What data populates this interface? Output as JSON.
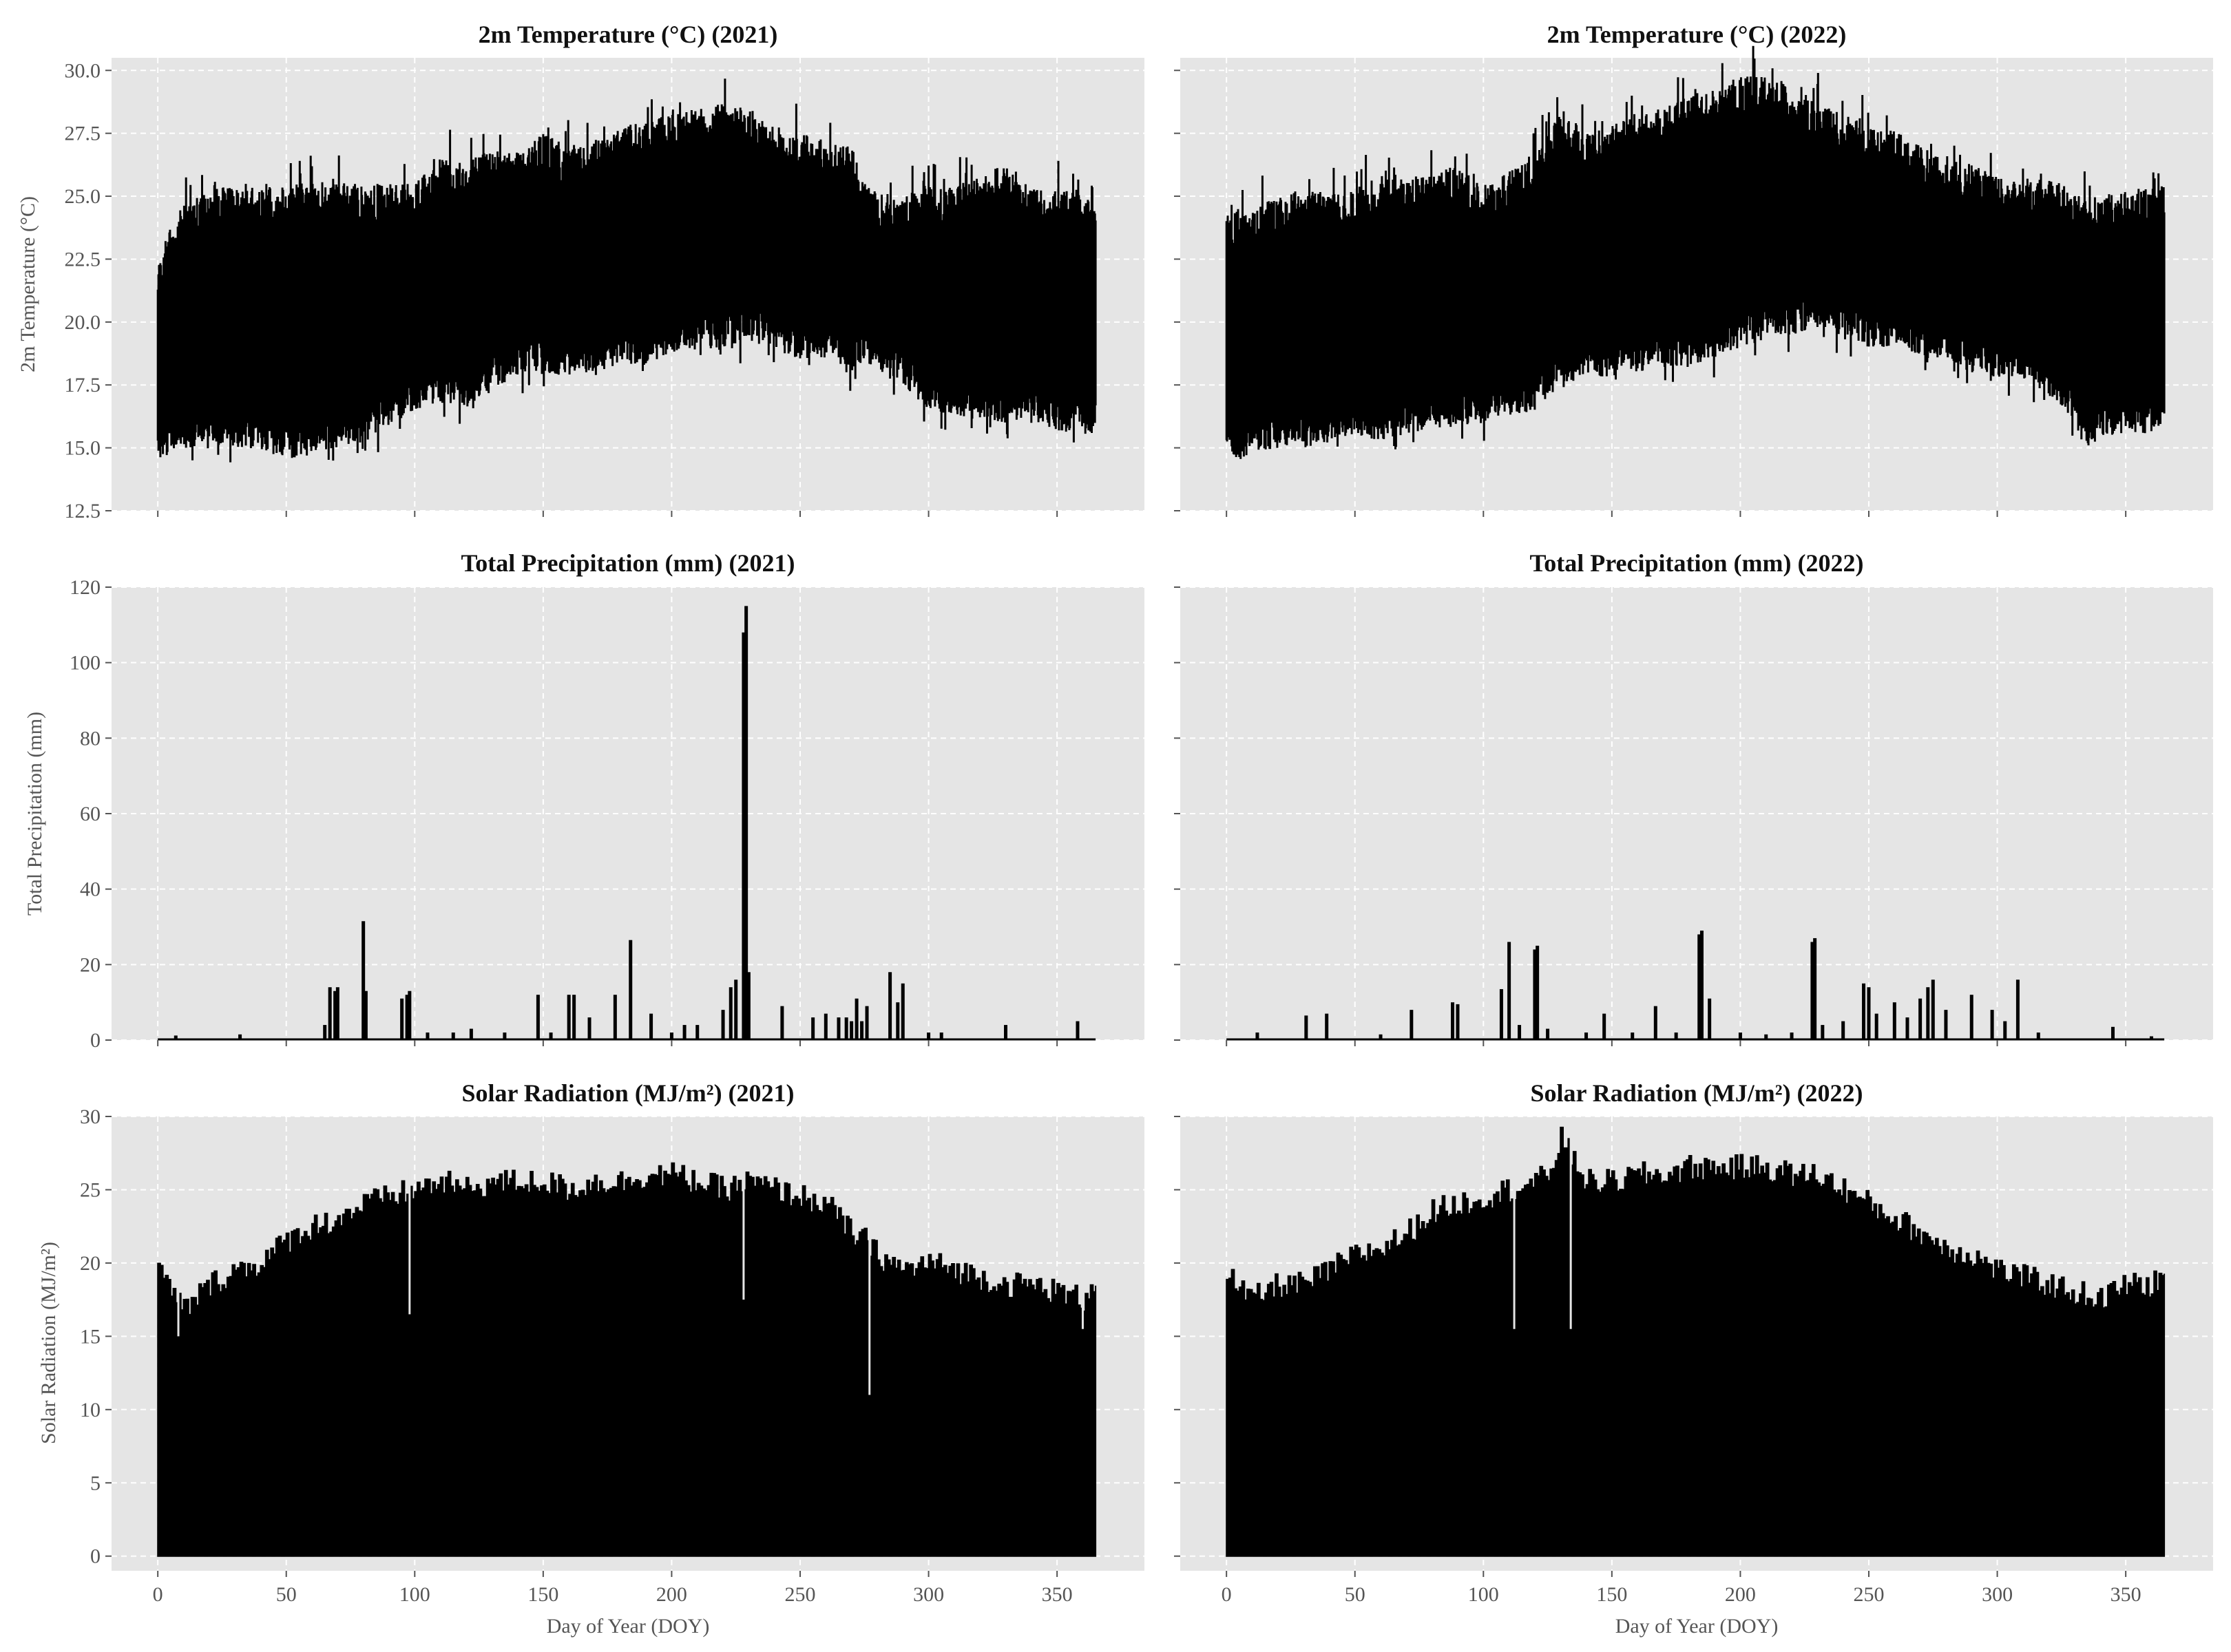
{
  "chart_data": [
    {
      "type": "line",
      "title": "2m Temperature (°C) (2021)",
      "xlabel": "",
      "ylabel": "2m Temperature (°C)",
      "xlim": [
        -18,
        384
      ],
      "ylim": [
        12.5,
        30.5
      ],
      "xticks": [
        0,
        50,
        100,
        150,
        200,
        250,
        300,
        350
      ],
      "yticks": [
        "12.5",
        "15.0",
        "17.5",
        "20.0",
        "22.5",
        "25.0",
        "27.5",
        "30.0"
      ],
      "grid": true,
      "series": [
        {
          "x": [
            0,
            5,
            10,
            20,
            30,
            40,
            50,
            60,
            70,
            80,
            90,
            100,
            110,
            120,
            130,
            140,
            150,
            160,
            170,
            180,
            190,
            200,
            210,
            220,
            230,
            240,
            250,
            260,
            270,
            275,
            280,
            290,
            300,
            310,
            320,
            330,
            340,
            350,
            360,
            365
          ],
          "min": [
            14.5,
            14.8,
            14.9,
            15.2,
            14.9,
            14.9,
            14.5,
            14.8,
            15.0,
            15.2,
            15.8,
            16.5,
            16.8,
            16.6,
            17.4,
            17.8,
            17.9,
            17.9,
            18.0,
            18.3,
            18.3,
            18.8,
            19.0,
            18.8,
            19.3,
            18.9,
            18.5,
            18.5,
            18.0,
            18.5,
            18.0,
            17.5,
            16.5,
            16.3,
            16.1,
            16.0,
            16.0,
            15.7,
            15.5,
            15.4
          ],
          "max": [
            22.8,
            23.8,
            24.7,
            25.2,
            25.5,
            25.5,
            25.5,
            25.5,
            25.5,
            25.5,
            25.5,
            25.5,
            26.5,
            26.5,
            26.8,
            27.0,
            27.5,
            27.0,
            27.3,
            27.8,
            28.0,
            28.3,
            28.5,
            28.7,
            28.5,
            27.8,
            27.5,
            27.2,
            27.0,
            25.5,
            25.2,
            25.0,
            25.5,
            25.3,
            26.0,
            26.2,
            25.3,
            25.2,
            25.3,
            25.5
          ]
        }
      ]
    },
    {
      "type": "line",
      "title": "2m Temperature (°C) (2022)",
      "xlabel": "",
      "ylabel": "",
      "xlim": [
        -18,
        384
      ],
      "ylim": [
        12.5,
        30.5
      ],
      "xticks": [
        0,
        50,
        100,
        150,
        200,
        250,
        300,
        350
      ],
      "grid": true,
      "series": [
        {
          "x": [
            0,
            5,
            10,
            20,
            30,
            40,
            50,
            60,
            70,
            80,
            90,
            100,
            110,
            120,
            130,
            140,
            150,
            160,
            170,
            180,
            190,
            200,
            210,
            220,
            230,
            240,
            250,
            260,
            270,
            280,
            290,
            300,
            310,
            320,
            330,
            335,
            340,
            350,
            360,
            365
          ],
          "min": [
            15.0,
            14.5,
            14.8,
            15.0,
            15.0,
            15.2,
            15.5,
            15.3,
            15.5,
            15.8,
            15.8,
            16.0,
            16.2,
            16.5,
            17.5,
            17.8,
            17.8,
            18.0,
            18.2,
            18.3,
            18.5,
            19.0,
            19.3,
            19.5,
            19.8,
            19.5,
            19.0,
            19.0,
            18.7,
            18.5,
            18.0,
            17.8,
            17.8,
            17.0,
            16.0,
            14.7,
            15.5,
            15.5,
            15.6,
            15.8
          ],
          "max": [
            24.8,
            24.5,
            24.6,
            25.0,
            25.3,
            25.2,
            25.3,
            25.8,
            26.0,
            25.8,
            26.3,
            25.5,
            26.0,
            26.5,
            28.5,
            27.5,
            28.0,
            28.3,
            28.5,
            29.0,
            29.3,
            29.8,
            29.8,
            29.3,
            28.8,
            28.3,
            27.8,
            27.6,
            27.0,
            26.5,
            26.3,
            25.8,
            25.5,
            25.8,
            25.3,
            25.0,
            25.0,
            25.3,
            25.3,
            25.5
          ]
        }
      ]
    },
    {
      "type": "bar",
      "title": "Total Precipitation (mm) (2021)",
      "xlabel": "",
      "ylabel": "Total Precipitation (mm)",
      "xlim": [
        -18,
        384
      ],
      "ylim": [
        0,
        120
      ],
      "xticks": [
        0,
        50,
        100,
        150,
        200,
        250,
        300,
        350
      ],
      "yticks": [
        "0",
        "20",
        "40",
        "60",
        "80",
        "100",
        "120"
      ],
      "grid": true,
      "series": [
        {
          "x": [
            7,
            32,
            65,
            67,
            69,
            70,
            80,
            81,
            95,
            97,
            98,
            105,
            115,
            122,
            135,
            148,
            153,
            160,
            162,
            168,
            178,
            184,
            192,
            200,
            205,
            210,
            220,
            223,
            225,
            228,
            229,
            230,
            243,
            255,
            260,
            265,
            268,
            270,
            272,
            274,
            276,
            285,
            288,
            290,
            300,
            305,
            330,
            358
          ],
          "values": [
            1.2,
            1.5,
            4,
            14,
            13,
            14,
            31.5,
            13,
            11,
            12,
            13,
            2,
            2,
            3,
            2,
            12,
            2,
            12,
            12,
            6,
            12,
            26.5,
            7,
            2,
            4,
            4,
            8,
            14,
            16,
            108,
            115,
            18,
            9,
            6,
            7,
            6,
            6,
            5,
            11,
            5,
            9,
            18,
            10,
            15,
            2,
            2,
            4,
            5
          ]
        }
      ]
    },
    {
      "type": "bar",
      "title": "Total Precipitation (mm) (2022)",
      "xlabel": "",
      "ylabel": "",
      "xlim": [
        -18,
        384
      ],
      "ylim": [
        0,
        120
      ],
      "xticks": [
        0,
        50,
        100,
        150,
        200,
        250,
        300,
        350
      ],
      "grid": true,
      "series": [
        {
          "x": [
            12,
            31,
            39,
            60,
            72,
            88,
            90,
            107,
            110,
            114,
            120,
            121,
            125,
            140,
            147,
            158,
            167,
            175,
            184,
            185,
            188,
            200,
            210,
            220,
            228,
            229,
            232,
            240,
            248,
            250,
            253,
            260,
            265,
            270,
            273,
            275,
            280,
            290,
            298,
            303,
            308,
            316,
            345,
            360
          ],
          "values": [
            2,
            6.5,
            7,
            1.5,
            8,
            10,
            9.5,
            13.5,
            26,
            4,
            24,
            25,
            3,
            2,
            7,
            2,
            9,
            2,
            28,
            29,
            11,
            2,
            1.5,
            2,
            26,
            27,
            4,
            5,
            15,
            14,
            7,
            10,
            6,
            11,
            14,
            16,
            8,
            12,
            8,
            5,
            16,
            2,
            3.5,
            1
          ]
        }
      ]
    },
    {
      "type": "area",
      "title": "Solar Radiation (MJ/m²) (2021)",
      "xlabel": "Day of Year (DOY)",
      "ylabel": "Solar Radiation (MJ/m²)",
      "xlim": [
        -18,
        384
      ],
      "ylim": [
        -1,
        30
      ],
      "xticks": [
        "0",
        "50",
        "100",
        "150",
        "200",
        "250",
        "300",
        "350"
      ],
      "yticks": [
        "0",
        "5",
        "10",
        "15",
        "20",
        "25",
        "30"
      ],
      "grid": true,
      "series": [
        {
          "x": [
            0,
            5,
            10,
            20,
            30,
            40,
            50,
            60,
            70,
            80,
            90,
            100,
            110,
            120,
            130,
            140,
            150,
            160,
            170,
            180,
            190,
            200,
            210,
            220,
            230,
            240,
            250,
            260,
            270,
            275,
            280,
            290,
            300,
            310,
            320,
            330,
            340,
            350,
            360,
            365
          ],
          "values": [
            19.5,
            18.0,
            16.8,
            18.5,
            19.5,
            20.0,
            21.5,
            22.5,
            23.0,
            24.0,
            24.5,
            25.0,
            25.5,
            25.0,
            25.5,
            25.5,
            25.5,
            25.0,
            25.5,
            25.5,
            26.0,
            26.0,
            25.5,
            25.0,
            25.5,
            25.0,
            24.5,
            24.0,
            22.0,
            21.5,
            20.5,
            19.5,
            20.0,
            19.5,
            19.0,
            18.5,
            18.5,
            18.0,
            17.5,
            19.0
          ],
          "dips": [
            {
              "x": 8,
              "value": 15.0
            },
            {
              "x": 98,
              "value": 16.5
            },
            {
              "x": 228,
              "value": 17.5
            },
            {
              "x": 277,
              "value": 11.0
            },
            {
              "x": 360,
              "value": 15.5
            }
          ]
        }
      ]
    },
    {
      "type": "area",
      "title": "Solar Radiation (MJ/m²) (2022)",
      "xlabel": "Day of Year (DOY)",
      "ylabel": "",
      "xlim": [
        -18,
        384
      ],
      "ylim": [
        -1,
        30
      ],
      "xticks": [
        "0",
        "50",
        "100",
        "150",
        "200",
        "250",
        "300",
        "350"
      ],
      "grid": true,
      "series": [
        {
          "x": [
            0,
            5,
            10,
            20,
            30,
            40,
            50,
            60,
            70,
            80,
            90,
            100,
            110,
            120,
            125,
            130,
            140,
            150,
            160,
            170,
            180,
            190,
            200,
            210,
            220,
            230,
            240,
            250,
            260,
            270,
            280,
            290,
            300,
            310,
            320,
            330,
            340,
            350,
            360,
            365
          ],
          "values": [
            19.5,
            18.0,
            17.5,
            18.5,
            18.5,
            19.5,
            20.5,
            21.0,
            22.0,
            23.5,
            24.0,
            24.5,
            25.0,
            25.5,
            26.0,
            28.5,
            25.5,
            25.5,
            26.0,
            26.0,
            26.5,
            26.5,
            26.5,
            26.5,
            26.0,
            26.0,
            25.0,
            24.0,
            23.0,
            22.0,
            21.0,
            20.5,
            19.5,
            19.0,
            18.5,
            18.0,
            17.5,
            18.5,
            18.5,
            19.0
          ],
          "dips": [
            {
              "x": 112,
              "value": 15.5
            },
            {
              "x": 134,
              "value": 15.5
            }
          ]
        }
      ]
    }
  ]
}
